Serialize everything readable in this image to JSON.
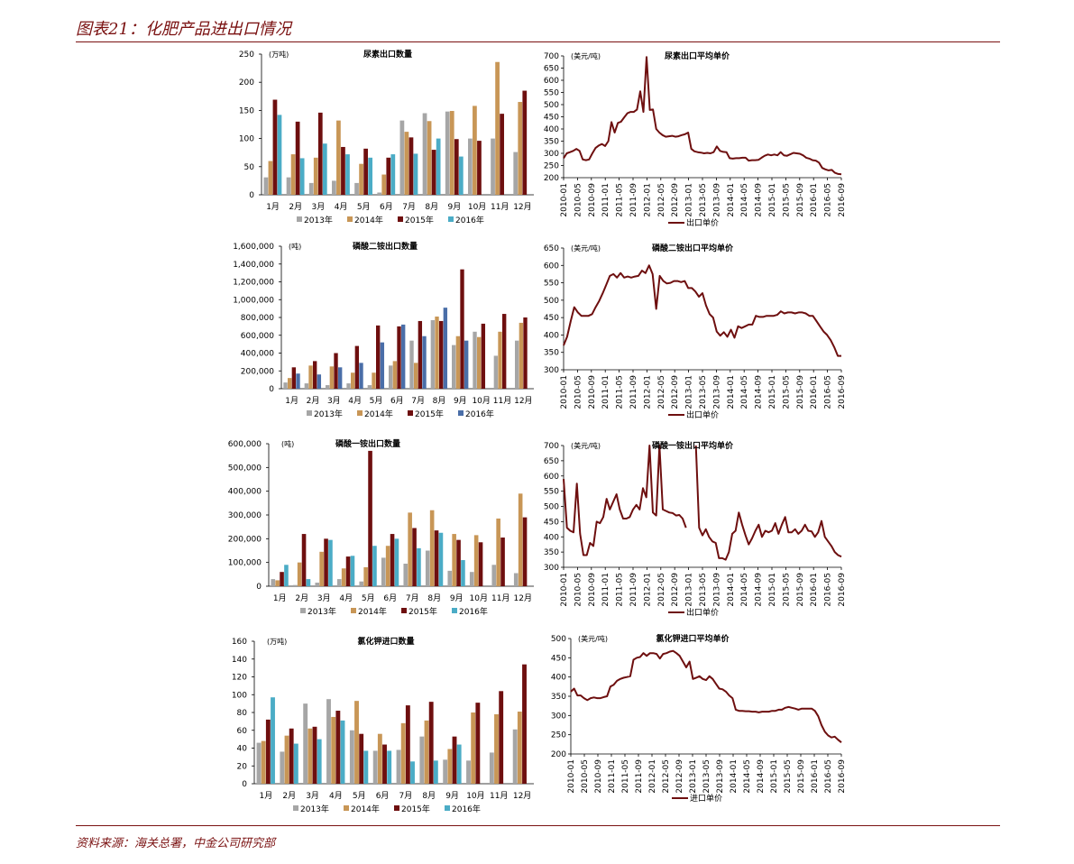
{
  "figure": {
    "title": "图表21：化肥产品进出口情况",
    "source": "资料来源：海关总署，中金公司研究部"
  },
  "colors": {
    "s2013": "#a6a6a6",
    "s2014": "#c89656",
    "s2015": "#6e0f0f",
    "s2016": "#4bacc6",
    "s2016_blue": "#4a6ea8",
    "line": "#6e0f0f",
    "accent": "#7a1111"
  },
  "chart_data": [
    {
      "id": "urea-volume",
      "type": "bar",
      "title": "尿素出口数量",
      "unit": "(万吨)",
      "categories": [
        "1月",
        "2月",
        "3月",
        "4月",
        "5月",
        "6月",
        "7月",
        "8月",
        "9月",
        "10月",
        "11月",
        "12月"
      ],
      "ylim": [
        0,
        250
      ],
      "yticks": [
        0,
        50,
        100,
        150,
        200,
        250
      ],
      "series": [
        {
          "name": "2013年",
          "color": "#a6a6a6",
          "values": [
            31,
            31,
            21,
            25,
            21,
            4,
            132,
            145,
            148,
            100,
            100,
            76
          ]
        },
        {
          "name": "2014年",
          "color": "#c89656",
          "values": [
            60,
            72,
            66,
            132,
            55,
            36,
            112,
            131,
            149,
            158,
            236,
            165
          ]
        },
        {
          "name": "2015年",
          "color": "#6e0f0f",
          "values": [
            169,
            130,
            146,
            85,
            82,
            66,
            102,
            80,
            99,
            96,
            144,
            185
          ]
        },
        {
          "name": "2016年",
          "color": "#4bacc6",
          "values": [
            142,
            65,
            91,
            72,
            66,
            72,
            73,
            100,
            68,
            null,
            null,
            null
          ]
        }
      ]
    },
    {
      "id": "urea-price",
      "type": "line",
      "title": "尿素出口平均单价",
      "unit": "(美元/吨)",
      "legend": "出口单价",
      "ylim": [
        200,
        700
      ],
      "yticks": [
        200,
        250,
        300,
        350,
        400,
        450,
        500,
        550,
        600,
        650,
        700
      ],
      "xticks": [
        "2010-01",
        "2010-05",
        "2010-09",
        "2011-01",
        "2011-05",
        "2011-09",
        "2012-01",
        "2012-05",
        "2012-09",
        "2013-01",
        "2013-05",
        "2013-09",
        "2014-01",
        "2014-05",
        "2014-09",
        "2015-01",
        "2015-05",
        "2015-09",
        "2016-01",
        "2016-05",
        "2016-09"
      ],
      "values": [
        280,
        300,
        305,
        310,
        318,
        310,
        275,
        272,
        275,
        300,
        322,
        332,
        338,
        330,
        350,
        428,
        385,
        425,
        430,
        448,
        465,
        470,
        470,
        480,
        555,
        470,
        695,
        478,
        480,
        400,
        385,
        375,
        368,
        370,
        372,
        368,
        370,
        375,
        378,
        385,
        318,
        308,
        305,
        303,
        300,
        302,
        300,
        305,
        328,
        310,
        306,
        305,
        280,
        278,
        280,
        280,
        282,
        282,
        270,
        272,
        272,
        273,
        282,
        290,
        295,
        292,
        295,
        292,
        305,
        292,
        290,
        296,
        302,
        300,
        298,
        292,
        282,
        278,
        272,
        270,
        262,
        240,
        234,
        230,
        232,
        220,
        215,
        214
      ]
    },
    {
      "id": "dap-volume",
      "type": "bar",
      "title": "磷酸二铵出口数量",
      "unit": "(吨)",
      "categories": [
        "1月",
        "2月",
        "3月",
        "4月",
        "5月",
        "6月",
        "7月",
        "8月",
        "9月",
        "10月",
        "11月",
        "12月"
      ],
      "ylim": [
        0,
        1600000
      ],
      "yticks": [
        0,
        200000,
        400000,
        600000,
        800000,
        1000000,
        1200000,
        1400000,
        1600000
      ],
      "ytick_labels": [
        "0",
        "200,000",
        "400,000",
        "600,000",
        "800,000",
        "1,000,000",
        "1,200,000",
        "1,400,000",
        "1,600,000"
      ],
      "series": [
        {
          "name": "2013年",
          "color": "#a6a6a6",
          "values": [
            70000,
            60000,
            40000,
            60000,
            40000,
            260000,
            540000,
            770000,
            490000,
            640000,
            370000,
            540000
          ]
        },
        {
          "name": "2014年",
          "color": "#c89656",
          "values": [
            120000,
            260000,
            250000,
            180000,
            180000,
            310000,
            290000,
            810000,
            590000,
            580000,
            640000,
            740000
          ]
        },
        {
          "name": "2015年",
          "color": "#6e0f0f",
          "values": [
            240000,
            310000,
            400000,
            480000,
            710000,
            700000,
            760000,
            760000,
            1340000,
            730000,
            840000,
            800000
          ]
        },
        {
          "name": "2016年",
          "color": "#4a6ea8",
          "values": [
            170000,
            160000,
            240000,
            290000,
            520000,
            720000,
            590000,
            910000,
            540000,
            null,
            null,
            null
          ]
        }
      ]
    },
    {
      "id": "dap-price",
      "type": "line",
      "title": "磷酸二铵出口平均单价",
      "unit": "(美元/吨)",
      "legend": "出口单价",
      "ylim": [
        300,
        650
      ],
      "yticks": [
        300,
        350,
        400,
        450,
        500,
        550,
        600,
        650
      ],
      "xticks": [
        "2010-01",
        "2010-05",
        "2010-09",
        "2011-01",
        "2011-05",
        "2011-09",
        "2012-01",
        "2012-05",
        "2012-09",
        "2013-01",
        "2013-05",
        "2013-09",
        "2014-01",
        "2014-05",
        "2014-09",
        "2015-01",
        "2015-05",
        "2015-09",
        "2016-01",
        "2016-05",
        "2016-09"
      ],
      "values": [
        370,
        395,
        440,
        480,
        465,
        455,
        455,
        455,
        460,
        480,
        498,
        520,
        545,
        570,
        575,
        565,
        578,
        565,
        568,
        565,
        568,
        570,
        585,
        578,
        600,
        575,
        475,
        570,
        555,
        548,
        550,
        555,
        555,
        552,
        555,
        535,
        535,
        525,
        510,
        520,
        485,
        460,
        450,
        410,
        398,
        408,
        395,
        415,
        392,
        425,
        420,
        425,
        430,
        430,
        455,
        452,
        452,
        455,
        455,
        455,
        458,
        468,
        462,
        465,
        465,
        462,
        465,
        465,
        462,
        455,
        455,
        440,
        425,
        410,
        400,
        385,
        365,
        340,
        340
      ]
    },
    {
      "id": "map-volume",
      "type": "bar",
      "title": "磷酸一铵出口数量",
      "unit": "(吨)",
      "categories": [
        "1月",
        "2月",
        "3月",
        "4月",
        "5月",
        "6月",
        "7月",
        "8月",
        "9月",
        "10月",
        "11月",
        "12月"
      ],
      "ylim": [
        0,
        600000
      ],
      "yticks": [
        0,
        100000,
        200000,
        300000,
        400000,
        500000,
        600000
      ],
      "ytick_labels": [
        "0",
        "100,000",
        "200,000",
        "300,000",
        "400,000",
        "500,000",
        "600,000"
      ],
      "series": [
        {
          "name": "2013年",
          "color": "#a6a6a6",
          "values": [
            30000,
            5000,
            15000,
            30000,
            20000,
            120000,
            95000,
            150000,
            65000,
            60000,
            90000,
            55000
          ]
        },
        {
          "name": "2014年",
          "color": "#c89656",
          "values": [
            25000,
            100000,
            145000,
            75000,
            80000,
            170000,
            310000,
            320000,
            220000,
            215000,
            285000,
            390000
          ]
        },
        {
          "name": "2015年",
          "color": "#6e0f0f",
          "values": [
            60000,
            220000,
            200000,
            125000,
            570000,
            220000,
            245000,
            235000,
            195000,
            185000,
            205000,
            290000
          ]
        },
        {
          "name": "2016年",
          "color": "#4bacc6",
          "values": [
            90000,
            30000,
            195000,
            128000,
            170000,
            200000,
            160000,
            225000,
            110000,
            null,
            null,
            null
          ]
        }
      ]
    },
    {
      "id": "map-price",
      "type": "line",
      "title": "磷酸一铵出口平均单价",
      "unit": "(美元/吨)",
      "legend": "出口单价",
      "ylim": [
        300,
        700
      ],
      "yticks": [
        300,
        350,
        400,
        450,
        500,
        550,
        600,
        650,
        700
      ],
      "xticks": [
        "2010-01",
        "2010-05",
        "2010-09",
        "2011-01",
        "2011-05",
        "2011-09",
        "2012-01",
        "2012-05",
        "2012-09",
        "2013-01",
        "2013-05",
        "2013-09",
        "2014-01",
        "2014-05",
        "2014-09",
        "2015-01",
        "2015-05",
        "2015-09",
        "2016-01",
        "2016-05",
        "2016-09"
      ],
      "values": [
        590,
        430,
        420,
        415,
        575,
        410,
        340,
        340,
        380,
        370,
        450,
        445,
        465,
        525,
        490,
        515,
        540,
        490,
        460,
        460,
        465,
        490,
        505,
        490,
        560,
        530,
        700,
        480,
        470,
        700,
        490,
        485,
        480,
        478,
        470,
        472,
        460,
        430,
        null,
        null,
        700,
        430,
        405,
        425,
        400,
        385,
        380,
        330,
        330,
        325,
        350,
        410,
        420,
        480,
        440,
        405,
        375,
        395,
        420,
        440,
        400,
        420,
        415,
        420,
        445,
        410,
        440,
        465,
        415,
        415,
        425,
        410,
        420,
        440,
        420,
        418,
        400,
        415,
        452,
        400,
        385,
        370,
        350,
        340,
        335
      ]
    },
    {
      "id": "kcl-volume",
      "type": "bar",
      "title": "氯化钾进口数量",
      "unit": "(万吨)",
      "categories": [
        "1月",
        "2月",
        "3月",
        "4月",
        "5月",
        "6月",
        "7月",
        "8月",
        "9月",
        "10月",
        "11月",
        "12月"
      ],
      "ylim": [
        0,
        160
      ],
      "yticks": [
        0,
        20,
        40,
        60,
        80,
        100,
        120,
        140,
        160
      ],
      "series": [
        {
          "name": "2013年",
          "color": "#a6a6a6",
          "values": [
            46,
            36,
            90,
            95,
            60,
            37,
            38,
            53,
            27,
            26,
            35,
            61
          ]
        },
        {
          "name": "2014年",
          "color": "#c89656",
          "values": [
            48,
            54,
            62,
            75,
            93,
            56,
            68,
            71,
            39,
            80,
            78,
            81
          ]
        },
        {
          "name": "2015年",
          "color": "#6e0f0f",
          "values": [
            72,
            62,
            64,
            82,
            56,
            44,
            88,
            92,
            53,
            91,
            104,
            134
          ]
        },
        {
          "name": "2016年",
          "color": "#4bacc6",
          "values": [
            97,
            45,
            50,
            71,
            37,
            37,
            25,
            26,
            44,
            null,
            null,
            null
          ]
        }
      ]
    },
    {
      "id": "kcl-price",
      "type": "line",
      "title": "氯化钾进口平均单价",
      "unit": "(美元/吨)",
      "legend": "进口单价",
      "ylim": [
        200,
        500
      ],
      "yticks": [
        200,
        250,
        300,
        350,
        400,
        450,
        500
      ],
      "xticks": [
        "2010-01",
        "2010-05",
        "2010-09",
        "2011-01",
        "2011-05",
        "2011-09",
        "2012-01",
        "2012-05",
        "2012-09",
        "2013-01",
        "2013-05",
        "2013-09",
        "2014-01",
        "2014-05",
        "2014-09",
        "2015-01",
        "2015-05",
        "2015-09",
        "2016-01",
        "2016-05",
        "2016-09"
      ],
      "values": [
        362,
        370,
        352,
        352,
        345,
        340,
        345,
        347,
        345,
        345,
        348,
        350,
        375,
        380,
        390,
        395,
        398,
        400,
        402,
        445,
        450,
        452,
        462,
        455,
        462,
        462,
        460,
        448,
        460,
        462,
        466,
        468,
        462,
        455,
        440,
        425,
        440,
        395,
        398,
        402,
        395,
        392,
        402,
        395,
        382,
        370,
        368,
        362,
        352,
        345,
        315,
        312,
        312,
        311,
        311,
        310,
        310,
        308,
        310,
        310,
        310,
        312,
        312,
        315,
        315,
        320,
        322,
        320,
        318,
        315,
        318,
        318,
        318,
        318,
        312,
        298,
        275,
        258,
        248,
        243,
        245,
        237,
        230
      ]
    }
  ]
}
